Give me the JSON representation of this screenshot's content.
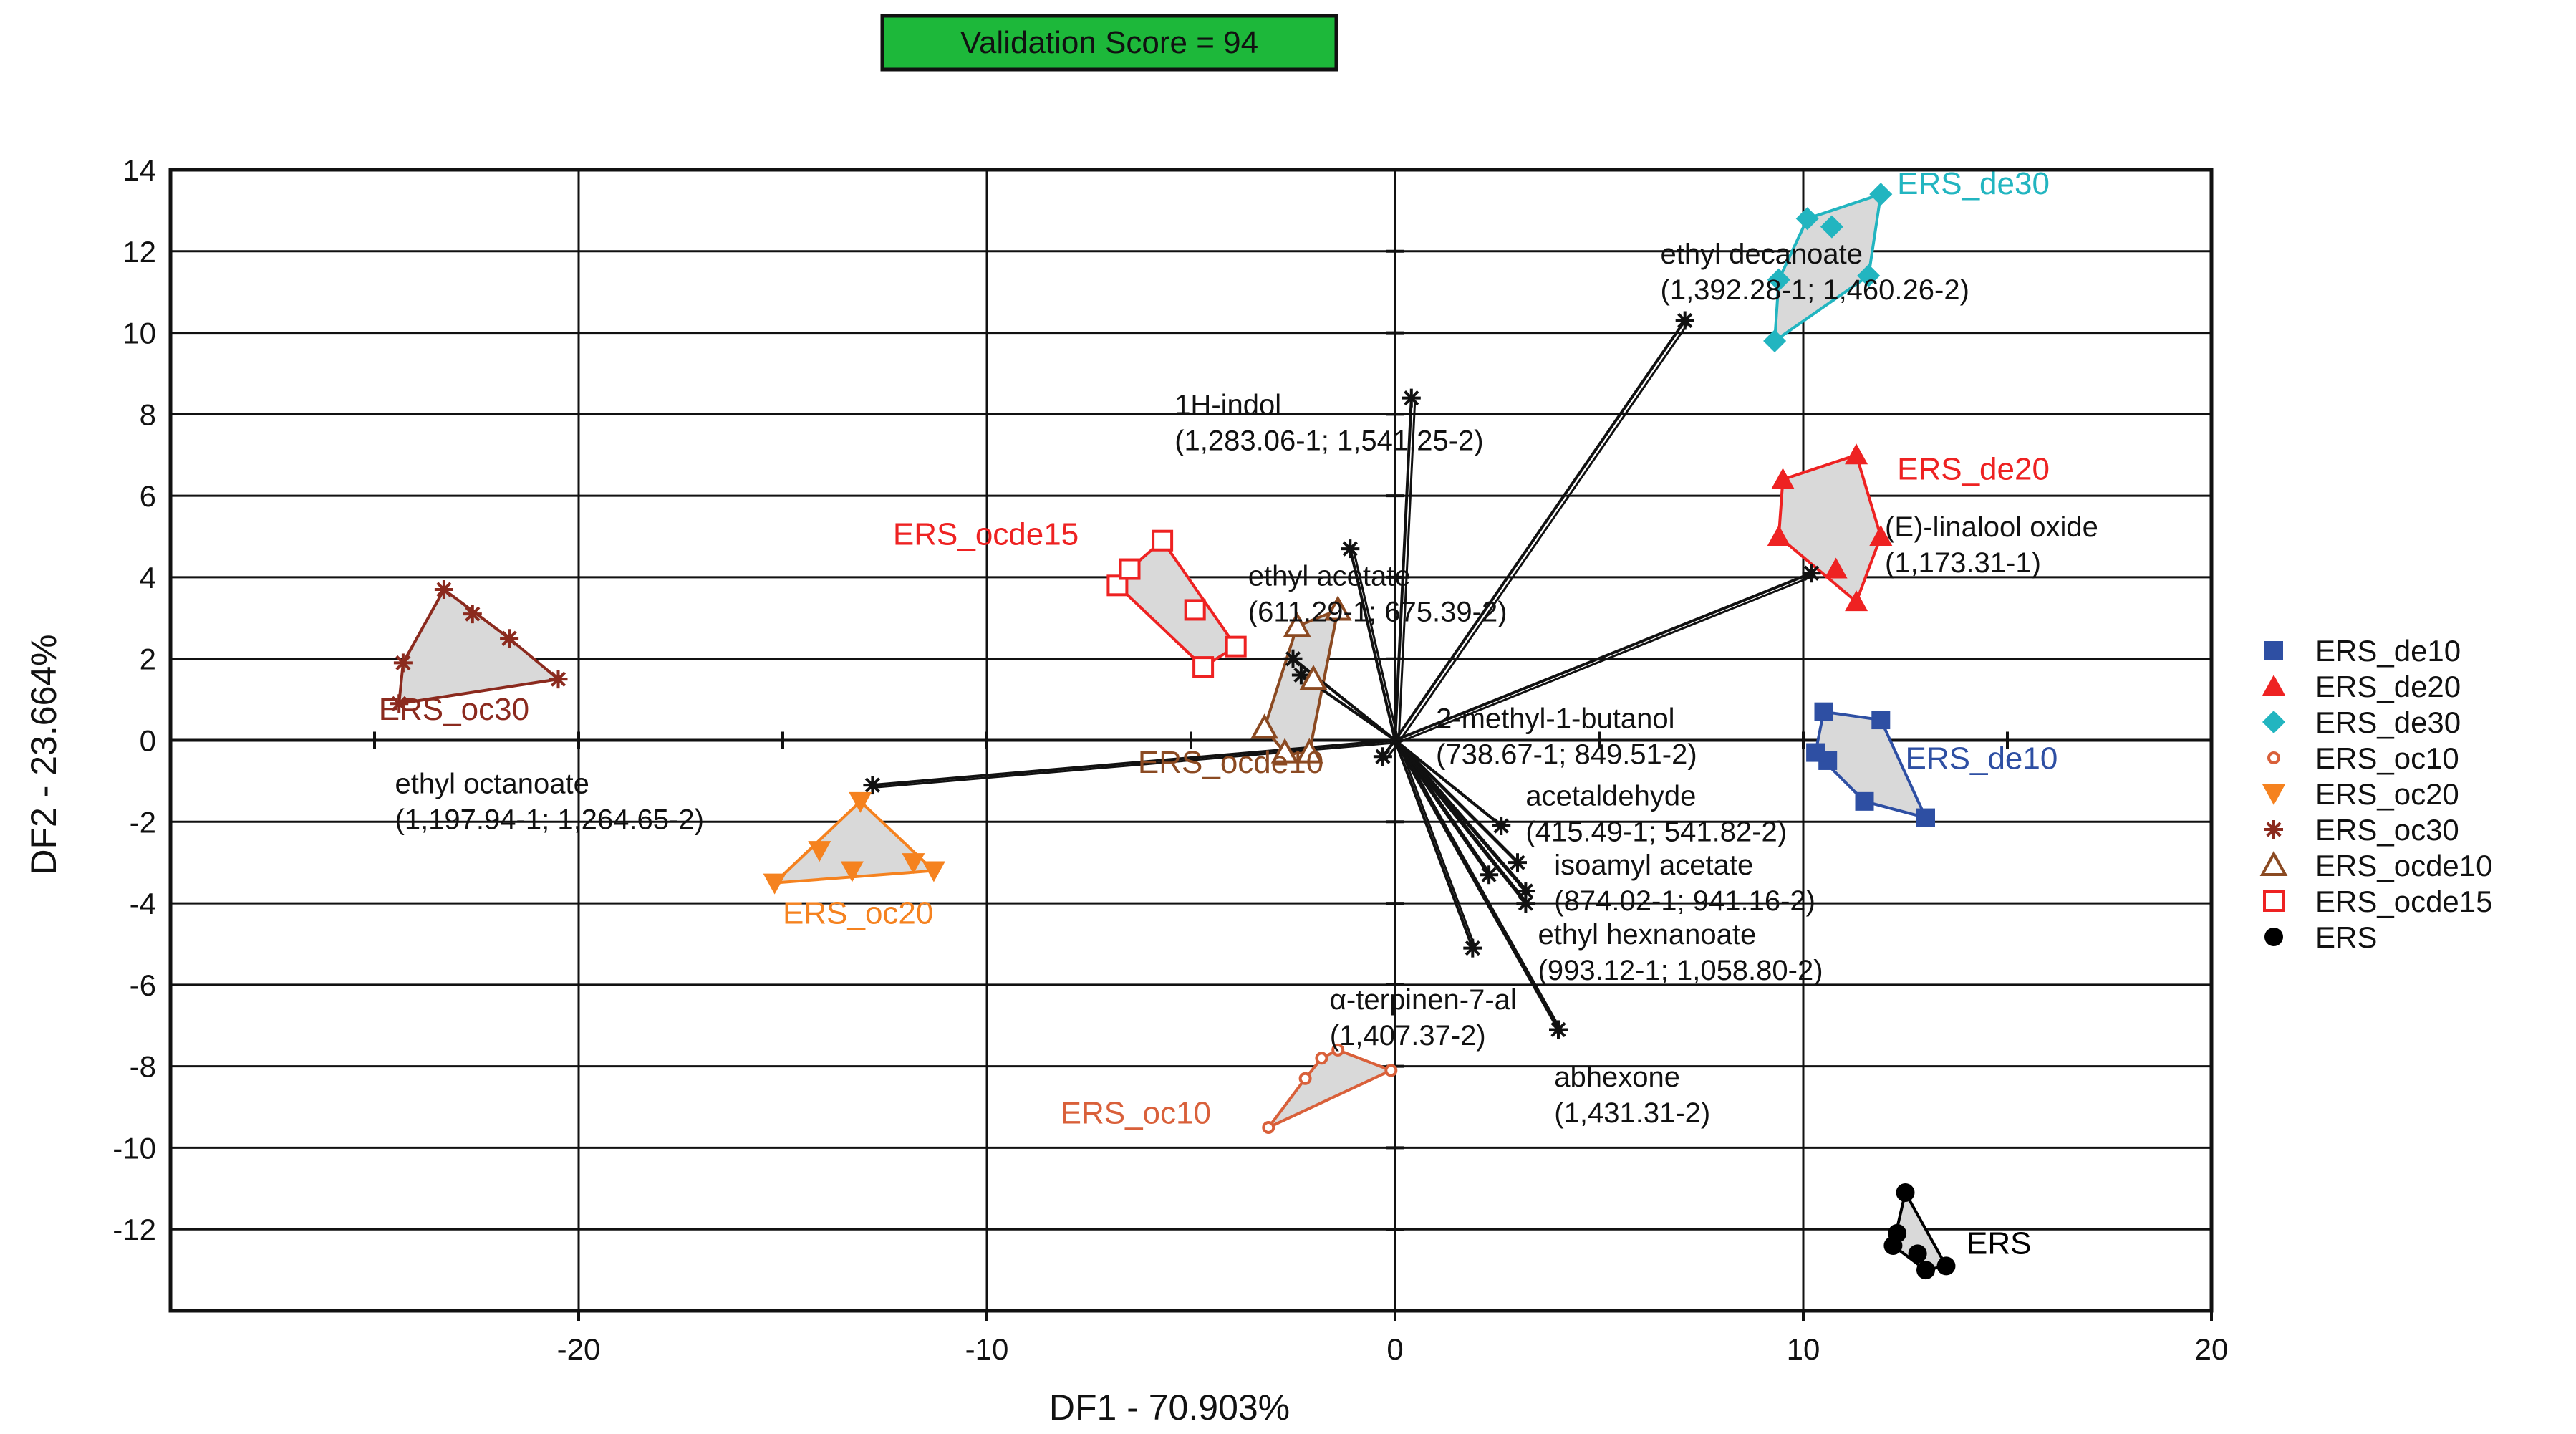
{
  "chart_data": {
    "type": "scatter",
    "title": "Validation Score = 94",
    "xlabel": "DF1 - 70.903%",
    "ylabel": "DF2 - 23.664%",
    "xlim": [
      -30,
      20
    ],
    "ylim": [
      -14,
      14
    ],
    "x_ticks": [
      -20,
      -10,
      0,
      10,
      20
    ],
    "y_ticks": [
      14,
      12,
      10,
      8,
      6,
      4,
      2,
      0,
      -2,
      -4,
      -6,
      -8,
      -10,
      -12
    ],
    "grid": true,
    "legend_position": "right",
    "series": [
      {
        "name": "ERS_de10",
        "label": "ERS_de10",
        "color": "#2e4fa3",
        "marker": "square",
        "points": [
          [
            10.5,
            0.7
          ],
          [
            11.9,
            0.5
          ],
          [
            13.0,
            -1.9
          ],
          [
            11.5,
            -1.5
          ],
          [
            10.6,
            -0.5
          ],
          [
            10.3,
            -0.3
          ]
        ],
        "label_pos": [
          12.5,
          -0.7
        ]
      },
      {
        "name": "ERS_de20",
        "label": "ERS_de20",
        "color": "#ee2222",
        "marker": "triangle",
        "points": [
          [
            9.5,
            6.4
          ],
          [
            11.3,
            7.0
          ],
          [
            11.9,
            5.0
          ],
          [
            11.3,
            3.4
          ],
          [
            10.8,
            4.2
          ],
          [
            9.4,
            5.0
          ]
        ],
        "label_pos": [
          12.3,
          6.4
        ]
      },
      {
        "name": "ERS_de30",
        "label": "ERS_de30",
        "color": "#22b5c0",
        "marker": "diamond",
        "points": [
          [
            10.1,
            12.8
          ],
          [
            11.9,
            13.4
          ],
          [
            11.6,
            11.4
          ],
          [
            9.3,
            9.8
          ],
          [
            9.4,
            11.3
          ],
          [
            10.7,
            12.6
          ]
        ],
        "label_pos": [
          12.3,
          13.4
        ]
      },
      {
        "name": "ERS_oc10",
        "label": "ERS_oc10",
        "color": "#d9603a",
        "marker": "circle-small",
        "points": [
          [
            -1.4,
            -7.6
          ],
          [
            -0.1,
            -8.1
          ],
          [
            -3.1,
            -9.5
          ],
          [
            -2.2,
            -8.3
          ],
          [
            -1.8,
            -7.8
          ]
        ],
        "label_pos": [
          -8.2,
          -9.4
        ]
      },
      {
        "name": "ERS_oc20",
        "label": "ERS_oc20",
        "color": "#f5821f",
        "marker": "triangle-down",
        "points": [
          [
            -13.1,
            -1.5
          ],
          [
            -11.3,
            -3.2
          ],
          [
            -15.2,
            -3.5
          ],
          [
            -14.1,
            -2.7
          ],
          [
            -13.3,
            -3.2
          ],
          [
            -11.8,
            -3.0
          ]
        ],
        "label_pos": [
          -15.0,
          -4.5
        ]
      },
      {
        "name": "ERS_oc30",
        "label": "ERS_oc30",
        "color": "#8b2a1e",
        "marker": "asterisk",
        "points": [
          [
            -23.3,
            3.7
          ],
          [
            -20.5,
            1.5
          ],
          [
            -24.4,
            0.9
          ],
          [
            -24.3,
            1.9
          ],
          [
            -22.6,
            3.1
          ],
          [
            -21.7,
            2.5
          ]
        ],
        "label_pos": [
          -24.9,
          0.5
        ]
      },
      {
        "name": "ERS_ocde10",
        "label": "ERS_ocde10",
        "color": "#8b4a22",
        "marker": "triangle-open",
        "points": [
          [
            -1.4,
            3.2
          ],
          [
            -2.1,
            -0.3
          ],
          [
            -3.2,
            0.3
          ],
          [
            -2.7,
            -0.3
          ],
          [
            -2.4,
            2.8
          ],
          [
            -2.0,
            1.5
          ]
        ],
        "label_pos": [
          -6.3,
          -0.8
        ]
      },
      {
        "name": "ERS_ocde15",
        "label": "ERS_ocde15",
        "color": "#ee2222",
        "marker": "square-open",
        "points": [
          [
            -5.7,
            4.9
          ],
          [
            -3.9,
            2.3
          ],
          [
            -4.7,
            1.8
          ],
          [
            -6.8,
            3.8
          ],
          [
            -6.5,
            4.2
          ],
          [
            -4.9,
            3.2
          ]
        ],
        "label_pos": [
          -12.3,
          4.8
        ]
      },
      {
        "name": "ERS",
        "label": "ERS",
        "color": "#000000",
        "marker": "circle",
        "points": [
          [
            12.5,
            -11.1
          ],
          [
            13.5,
            -12.9
          ],
          [
            13.0,
            -13.0
          ],
          [
            12.2,
            -12.4
          ],
          [
            12.3,
            -12.1
          ],
          [
            12.8,
            -12.6
          ]
        ],
        "label_pos": [
          14.0,
          -12.6
        ]
      }
    ],
    "loadings": [
      {
        "name": "ethyl decanoate",
        "code": "(1,392.28-1; 1,460.26-2)",
        "tip": [
          7.1,
          10.3
        ],
        "label_pos": [
          6.5,
          11.7
        ]
      },
      {
        "name": "1H-indol",
        "code": "(1,283.06-1; 1,541.25-2)",
        "tip": [
          0.4,
          8.4
        ],
        "label_pos": [
          -5.4,
          8.0
        ]
      },
      {
        "name": "ethyl acetate",
        "code": "(611.29-1; 675.39-2)",
        "tip": [
          -1.1,
          4.7
        ],
        "label_pos": [
          -3.6,
          3.8
        ]
      },
      {
        "name": "(E)-linalool oxide",
        "code": "(1,173.31-1)",
        "tip": [
          10.2,
          4.1
        ],
        "label_pos": [
          12.0,
          5.0
        ]
      },
      {
        "name": "2-methyl-1-butanol",
        "code": "(738.67-1; 849.51-2)",
        "tip": [
          -2.5,
          2.0
        ],
        "label_pos": [
          1.0,
          0.3
        ]
      },
      {
        "name": "",
        "code": "",
        "tip": [
          -2.3,
          1.6
        ],
        "label_pos": null
      },
      {
        "name": "ethyl octanoate",
        "code": "(1,197.94-1; 1,264.65-2)",
        "tip": [
          -12.8,
          -1.1
        ],
        "label_pos": [
          -24.5,
          -1.3
        ]
      },
      {
        "name": "acetaldehyde",
        "code": "(415.49-1; 541.82-2)",
        "tip": [
          2.6,
          -2.1
        ],
        "label_pos": [
          3.2,
          -1.6
        ]
      },
      {
        "name": "isoamyl acetate",
        "code": "(874.02-1; 941.16-2)",
        "tip": [
          3.0,
          -3.0
        ],
        "label_pos": [
          3.9,
          -3.3
        ]
      },
      {
        "name": "",
        "code": "",
        "tip": [
          2.3,
          -3.3
        ],
        "label_pos": null
      },
      {
        "name": "",
        "code": "",
        "tip": [
          3.2,
          -3.7
        ],
        "label_pos": null
      },
      {
        "name": "ethyl hexnanoate",
        "code": "(993.12-1; 1,058.80-2)",
        "tip": [
          3.2,
          -4.0
        ],
        "label_pos": [
          3.5,
          -5.0
        ]
      },
      {
        "name": "α-terpinen-7-al",
        "code": "(1,407.37-2)",
        "tip": [
          1.9,
          -5.1
        ],
        "label_pos": [
          -1.6,
          -6.6
        ]
      },
      {
        "name": "abhexone",
        "code": "(1,431.31-2)",
        "tip": [
          4.0,
          -7.1
        ],
        "label_pos": [
          3.9,
          -8.5
        ]
      },
      {
        "name": "",
        "code": "",
        "tip": [
          -0.3,
          -0.4
        ],
        "label_pos": null
      }
    ]
  }
}
